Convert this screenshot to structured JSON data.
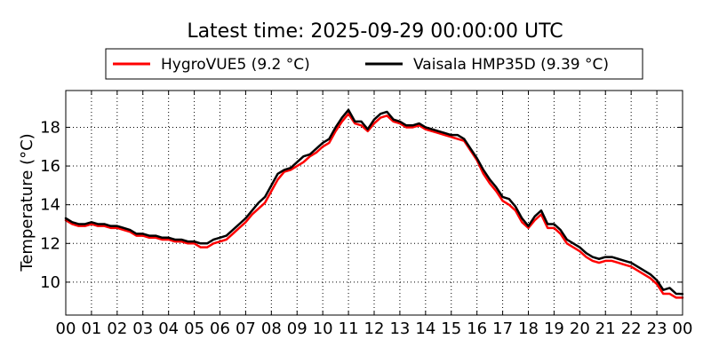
{
  "chart_data": {
    "type": "line",
    "title": "Latest time: 2025-09-29 00:00:00 UTC",
    "xlabel": "",
    "ylabel": "Temperature (°C)",
    "xlim": [
      0,
      24
    ],
    "ylim": [
      8.3,
      19.9
    ],
    "x_ticks": [
      0,
      1,
      2,
      3,
      4,
      5,
      6,
      7,
      8,
      9,
      10,
      11,
      12,
      13,
      14,
      15,
      16,
      17,
      18,
      19,
      20,
      21,
      22,
      23,
      24
    ],
    "x_tick_labels": [
      "00",
      "01",
      "02",
      "03",
      "04",
      "05",
      "06",
      "07",
      "08",
      "09",
      "10",
      "11",
      "12",
      "13",
      "14",
      "15",
      "16",
      "17",
      "18",
      "19",
      "20",
      "21",
      "22",
      "23",
      "00"
    ],
    "y_ticks": [
      10,
      12,
      14,
      16,
      18
    ],
    "y_tick_labels": [
      "10",
      "12",
      "14",
      "16",
      "18"
    ],
    "grid": true,
    "legend_position": "top",
    "x": [
      0,
      0.25,
      0.5,
      0.75,
      1,
      1.25,
      1.5,
      1.75,
      2,
      2.25,
      2.5,
      2.75,
      3,
      3.25,
      3.5,
      3.75,
      4,
      4.25,
      4.5,
      4.75,
      5,
      5.25,
      5.5,
      5.75,
      6,
      6.25,
      6.5,
      6.75,
      7,
      7.25,
      7.5,
      7.75,
      8,
      8.25,
      8.5,
      8.75,
      9,
      9.25,
      9.5,
      9.75,
      10,
      10.25,
      10.5,
      10.75,
      11,
      11.25,
      11.5,
      11.75,
      12,
      12.25,
      12.5,
      12.75,
      13,
      13.25,
      13.5,
      13.75,
      14,
      14.25,
      14.5,
      14.75,
      15,
      15.25,
      15.5,
      15.75,
      16,
      16.25,
      16.5,
      16.75,
      17,
      17.25,
      17.5,
      17.75,
      18,
      18.25,
      18.5,
      18.75,
      19,
      19.25,
      19.5,
      19.75,
      20,
      20.25,
      20.5,
      20.75,
      21,
      21.25,
      21.5,
      21.75,
      22,
      22.25,
      22.5,
      22.75,
      23,
      23.25,
      23.5,
      23.75,
      24
    ],
    "series": [
      {
        "name": "HygroVUE5 (9.2 °C)",
        "color": "#ff0000",
        "values": [
          13.2,
          13.0,
          12.9,
          12.9,
          13.0,
          12.9,
          12.9,
          12.8,
          12.8,
          12.7,
          12.6,
          12.4,
          12.4,
          12.3,
          12.3,
          12.2,
          12.2,
          12.1,
          12.1,
          12.0,
          12.0,
          11.8,
          11.8,
          12.0,
          12.1,
          12.2,
          12.5,
          12.8,
          13.1,
          13.5,
          13.8,
          14.1,
          14.7,
          15.3,
          15.7,
          15.8,
          16.0,
          16.2,
          16.5,
          16.7,
          17.0,
          17.2,
          17.8,
          18.3,
          18.7,
          18.2,
          18.1,
          17.8,
          18.2,
          18.5,
          18.6,
          18.3,
          18.2,
          18.0,
          18.0,
          18.1,
          17.9,
          17.8,
          17.7,
          17.6,
          17.5,
          17.4,
          17.3,
          16.8,
          16.3,
          15.6,
          15.1,
          14.7,
          14.2,
          14.0,
          13.7,
          13.1,
          12.8,
          13.2,
          13.5,
          12.8,
          12.8,
          12.5,
          12.0,
          11.8,
          11.6,
          11.3,
          11.1,
          11.0,
          11.1,
          11.1,
          11.0,
          10.9,
          10.8,
          10.6,
          10.4,
          10.2,
          9.9,
          9.4,
          9.4,
          9.2,
          9.2
        ]
      },
      {
        "name": "Vaisala HMP35D (9.39 °C)",
        "color": "#000000",
        "values": [
          13.3,
          13.1,
          13.0,
          13.0,
          13.1,
          13.0,
          13.0,
          12.9,
          12.9,
          12.8,
          12.7,
          12.5,
          12.5,
          12.4,
          12.4,
          12.3,
          12.3,
          12.2,
          12.2,
          12.1,
          12.1,
          12.0,
          12.0,
          12.2,
          12.3,
          12.4,
          12.7,
          13.0,
          13.3,
          13.7,
          14.1,
          14.4,
          15.0,
          15.6,
          15.8,
          15.9,
          16.2,
          16.5,
          16.6,
          16.9,
          17.2,
          17.4,
          18.0,
          18.5,
          18.9,
          18.3,
          18.3,
          17.9,
          18.4,
          18.7,
          18.8,
          18.4,
          18.3,
          18.1,
          18.1,
          18.2,
          18.0,
          17.9,
          17.8,
          17.7,
          17.6,
          17.6,
          17.4,
          16.9,
          16.4,
          15.8,
          15.3,
          14.9,
          14.4,
          14.3,
          13.9,
          13.3,
          12.9,
          13.4,
          13.7,
          13.0,
          13.0,
          12.7,
          12.2,
          12.0,
          11.8,
          11.5,
          11.3,
          11.2,
          11.3,
          11.3,
          11.2,
          11.1,
          11.0,
          10.8,
          10.6,
          10.4,
          10.1,
          9.6,
          9.7,
          9.4,
          9.39
        ]
      }
    ]
  }
}
